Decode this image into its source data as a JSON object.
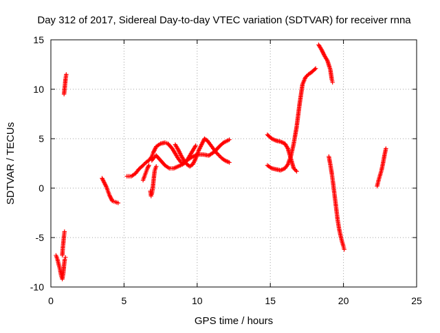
{
  "chart_data": {
    "type": "scatter",
    "title": "Day 312 of 2017, Sidereal Day-to-day VTEC variation (SDTVAR) for receiver rnna",
    "xlabel": "GPS time / hours",
    "ylabel": "SDTVAR / TECUs",
    "xlim": [
      0,
      25
    ],
    "ylim": [
      -10,
      15
    ],
    "xticks": [
      0,
      5,
      10,
      15,
      20,
      25
    ],
    "yticks": [
      -10,
      -5,
      0,
      5,
      10,
      15
    ],
    "xtick_labels": [
      "0",
      "5",
      "10",
      "15",
      "20",
      "25"
    ],
    "ytick_labels": [
      "-10",
      "-5",
      "0",
      "5",
      "10",
      "15"
    ],
    "grid": true,
    "marker": "+",
    "series_color": "#ff0000",
    "series": [
      {
        "segments": [
          [
            [
              0.35,
              -6.8
            ],
            [
              0.45,
              -7.2
            ],
            [
              0.55,
              -7.8
            ],
            [
              0.62,
              -8.2
            ],
            [
              0.7,
              -8.8
            ],
            [
              0.78,
              -9.2
            ],
            [
              0.85,
              -8.6
            ],
            [
              0.9,
              -7.8
            ],
            [
              0.95,
              -7.2
            ],
            [
              1.0,
              -7.0
            ]
          ],
          [
            [
              0.78,
              -6.8
            ],
            [
              0.82,
              -6.0
            ],
            [
              0.86,
              -5.4
            ],
            [
              0.9,
              -4.8
            ],
            [
              0.93,
              -4.4
            ]
          ],
          [
            [
              0.9,
              9.5
            ],
            [
              0.95,
              10.2
            ],
            [
              1.0,
              11.0
            ],
            [
              1.05,
              11.5
            ]
          ],
          [
            [
              3.5,
              1.0
            ],
            [
              3.6,
              0.7
            ],
            [
              3.7,
              0.4
            ],
            [
              3.8,
              0.1
            ],
            [
              3.9,
              -0.3
            ],
            [
              4.0,
              -0.7
            ],
            [
              4.1,
              -1.0
            ],
            [
              4.2,
              -1.3
            ],
            [
              4.4,
              -1.4
            ],
            [
              4.6,
              -1.5
            ]
          ],
          [
            [
              5.2,
              1.2
            ],
            [
              5.5,
              1.2
            ],
            [
              5.8,
              1.5
            ],
            [
              6.0,
              1.9
            ],
            [
              6.3,
              2.3
            ],
            [
              6.5,
              2.6
            ],
            [
              6.7,
              2.8
            ],
            [
              6.9,
              3.2
            ],
            [
              7.0,
              3.6
            ],
            [
              7.2,
              4.2
            ],
            [
              7.5,
              4.5
            ],
            [
              7.8,
              4.6
            ],
            [
              8.0,
              4.5
            ],
            [
              8.3,
              4.0
            ],
            [
              8.5,
              3.5
            ],
            [
              8.7,
              3.0
            ],
            [
              8.9,
              2.6
            ],
            [
              9.1,
              2.5
            ],
            [
              9.3,
              2.8
            ],
            [
              9.5,
              3.3
            ],
            [
              9.7,
              3.8
            ],
            [
              9.9,
              4.3
            ]
          ],
          [
            [
              6.3,
              0.8
            ],
            [
              6.4,
              1.2
            ],
            [
              6.5,
              1.6
            ],
            [
              6.6,
              2.0
            ],
            [
              6.7,
              2.3
            ]
          ],
          [
            [
              6.8,
              -0.3
            ],
            [
              6.85,
              -0.8
            ],
            [
              6.9,
              -0.6
            ],
            [
              6.95,
              -0.2
            ],
            [
              7.0,
              0.5
            ],
            [
              7.05,
              1.2
            ],
            [
              7.1,
              1.8
            ],
            [
              7.2,
              2.2
            ]
          ],
          [
            [
              6.9,
              2.8
            ],
            [
              7.0,
              3.0
            ],
            [
              7.2,
              3.3
            ],
            [
              7.5,
              2.8
            ],
            [
              7.8,
              2.3
            ],
            [
              8.1,
              2.0
            ],
            [
              8.4,
              2.0
            ],
            [
              8.7,
              2.2
            ],
            [
              9.0,
              2.4
            ],
            [
              9.3,
              2.8
            ],
            [
              9.6,
              3.1
            ],
            [
              10.0,
              3.4
            ],
            [
              10.4,
              3.4
            ],
            [
              10.8,
              3.3
            ],
            [
              11.2,
              3.7
            ],
            [
              11.5,
              4.2
            ],
            [
              11.8,
              4.6
            ],
            [
              12.2,
              4.9
            ]
          ],
          [
            [
              8.5,
              4.4
            ],
            [
              8.7,
              3.9
            ],
            [
              8.9,
              3.3
            ],
            [
              9.1,
              2.8
            ],
            [
              9.3,
              2.4
            ],
            [
              9.5,
              2.2
            ],
            [
              9.7,
              2.4
            ],
            [
              9.9,
              3.0
            ],
            [
              10.1,
              3.8
            ],
            [
              10.3,
              4.4
            ],
            [
              10.5,
              5.0
            ],
            [
              10.7,
              4.8
            ],
            [
              10.9,
              4.4
            ],
            [
              11.1,
              4.0
            ],
            [
              11.3,
              3.6
            ],
            [
              11.5,
              3.3
            ],
            [
              11.7,
              3.0
            ],
            [
              11.9,
              2.8
            ],
            [
              12.2,
              2.6
            ]
          ],
          [
            [
              14.8,
              2.3
            ],
            [
              15.1,
              2.0
            ],
            [
              15.4,
              1.9
            ],
            [
              15.7,
              1.8
            ],
            [
              16.0,
              2.0
            ],
            [
              16.2,
              2.4
            ],
            [
              16.4,
              3.2
            ],
            [
              16.6,
              4.5
            ],
            [
              16.8,
              6.2
            ],
            [
              17.0,
              8.5
            ],
            [
              17.2,
              10.5
            ],
            [
              17.4,
              11.2
            ],
            [
              17.6,
              11.5
            ],
            [
              17.8,
              11.7
            ],
            [
              18.1,
              12.1
            ]
          ],
          [
            [
              14.8,
              5.4
            ],
            [
              15.1,
              5.0
            ],
            [
              15.4,
              4.8
            ],
            [
              15.7,
              4.7
            ],
            [
              16.0,
              4.5
            ],
            [
              16.2,
              4.0
            ],
            [
              16.4,
              3.0
            ],
            [
              16.6,
              2.0
            ],
            [
              16.8,
              1.7
            ]
          ],
          [
            [
              18.3,
              14.5
            ],
            [
              18.5,
              14.0
            ],
            [
              18.7,
              13.4
            ],
            [
              18.9,
              12.9
            ],
            [
              19.1,
              12.0
            ],
            [
              19.2,
              11.0
            ],
            [
              19.25,
              10.7
            ]
          ],
          [
            [
              19.0,
              3.2
            ],
            [
              19.1,
              2.4
            ],
            [
              19.2,
              1.5
            ],
            [
              19.3,
              0.4
            ],
            [
              19.4,
              -0.8
            ],
            [
              19.5,
              -2.0
            ],
            [
              19.6,
              -3.2
            ],
            [
              19.7,
              -4.1
            ],
            [
              19.8,
              -4.8
            ],
            [
              19.9,
              -5.4
            ],
            [
              20.0,
              -5.9
            ],
            [
              20.05,
              -6.2
            ]
          ],
          [
            [
              22.3,
              0.2
            ],
            [
              22.4,
              0.8
            ],
            [
              22.5,
              1.3
            ],
            [
              22.6,
              1.8
            ],
            [
              22.7,
              2.5
            ],
            [
              22.8,
              3.3
            ],
            [
              22.9,
              4.0
            ]
          ]
        ]
      }
    ]
  }
}
